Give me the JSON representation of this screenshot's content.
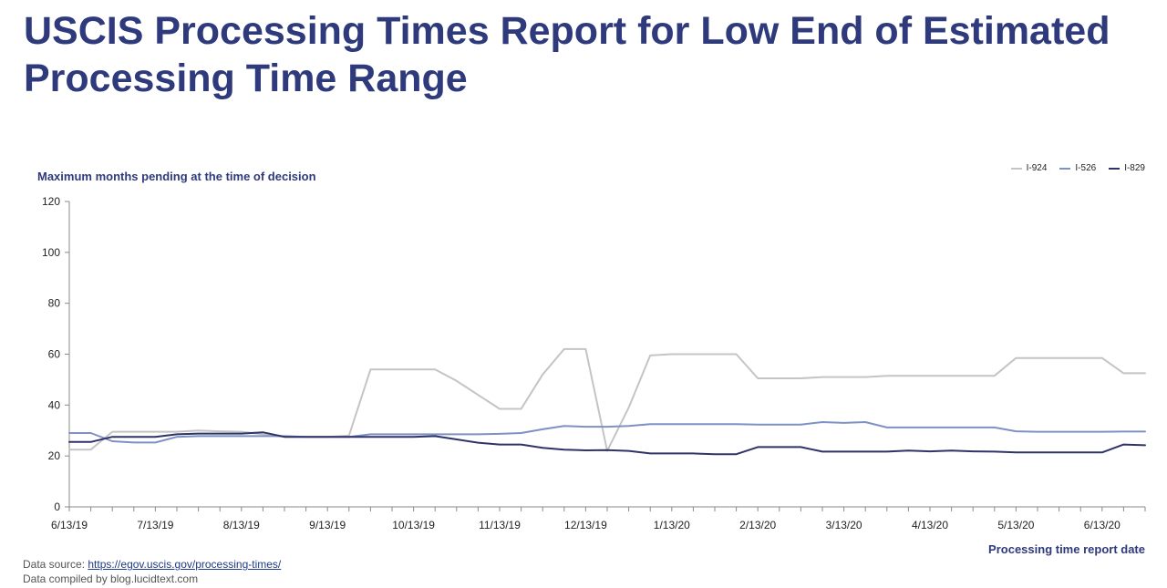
{
  "page": {
    "title": "USCIS Processing Times Report for Low End of Estimated Processing Time Range"
  },
  "footer": {
    "source_prefix": "Data source: ",
    "source_link": "https://egov.uscis.gov/processing-times/",
    "compiled": "Data compiled by blog.lucidtext.com"
  },
  "chart_data": {
    "type": "line",
    "ylabel": "Maximum months pending at the time of decision",
    "xlabel": "Processing time report date",
    "ylim": [
      0,
      120
    ],
    "yticks": [
      0,
      20,
      40,
      60,
      80,
      100,
      120
    ],
    "xticks": [
      "6/13/19",
      "7/13/19",
      "8/13/19",
      "9/13/19",
      "10/13/19",
      "11/13/19",
      "12/13/19",
      "1/13/20",
      "2/13/20",
      "3/13/20",
      "4/13/20",
      "5/13/20",
      "6/13/20"
    ],
    "x_points_per_month": 4,
    "n_points": 51,
    "grid": false,
    "legend_position": "top-right",
    "series": [
      {
        "name": "I-924",
        "color": "#c4c4c4",
        "values": [
          22.5,
          22.5,
          29.5,
          29.5,
          29.5,
          29.5,
          30,
          29.7,
          29.5,
          28.5,
          27.5,
          27.5,
          27.5,
          28,
          54,
          54,
          54,
          54,
          49.5,
          44,
          38.5,
          38.5,
          52,
          62,
          62,
          22,
          39,
          59.5,
          60,
          60,
          60,
          60,
          50.5,
          50.5,
          50.5,
          51,
          51,
          51,
          51.5,
          51.5,
          51.5,
          51.5,
          51.5,
          51.5,
          58.5,
          58.5,
          58.5,
          58.5,
          58.5,
          52.5,
          52.5
        ]
      },
      {
        "name": "I-526",
        "color": "#7d91c4",
        "values": [
          29,
          29,
          25.8,
          25.3,
          25.3,
          27.5,
          27.8,
          27.8,
          27.8,
          27.8,
          27.8,
          27.5,
          27.5,
          27.5,
          28.5,
          28.5,
          28.5,
          28.5,
          28.5,
          28.5,
          28.7,
          29,
          30.5,
          31.8,
          31.5,
          31.5,
          31.8,
          32.5,
          32.5,
          32.5,
          32.5,
          32.5,
          32.3,
          32.3,
          32.3,
          33.3,
          33,
          33.3,
          31.2,
          31.2,
          31.2,
          31.2,
          31.2,
          31.2,
          29.7,
          29.5,
          29.5,
          29.5,
          29.5,
          29.6,
          29.6
        ]
      },
      {
        "name": "I-829",
        "color": "#2e3468",
        "values": [
          25.5,
          25.5,
          27.5,
          27.5,
          27.5,
          28.5,
          28.8,
          28.8,
          28.8,
          29.3,
          27.5,
          27.5,
          27.5,
          27.5,
          27.5,
          27.5,
          27.5,
          27.8,
          26.5,
          25.2,
          24.5,
          24.5,
          23.2,
          22.5,
          22.2,
          22.3,
          22,
          21,
          21,
          21,
          20.7,
          20.7,
          23.5,
          23.5,
          23.5,
          21.7,
          21.7,
          21.7,
          21.7,
          22.1,
          21.8,
          22.1,
          21.8,
          21.7,
          21.4,
          21.4,
          21.4,
          21.4,
          21.4,
          24.5,
          24.2
        ]
      }
    ]
  }
}
